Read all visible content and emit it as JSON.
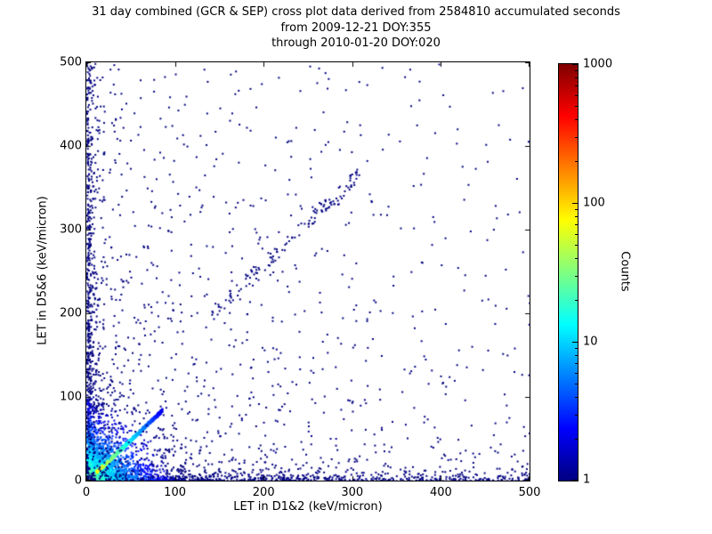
{
  "chart_data": {
    "type": "scatter",
    "title": "31 day combined (GCR & SEP) cross plot data derived from 2584810 accumulated seconds",
    "subtitle_from": "from 2009-12-21 DOY:355",
    "subtitle_through": "through 2010-01-20 DOY:020",
    "xlabel": "LET in D1&2 (keV/micron)",
    "ylabel": "LET in D5&6 (keV/micron)",
    "xlim": [
      0,
      500
    ],
    "ylim": [
      0,
      500
    ],
    "x_ticks": [
      0,
      100,
      200,
      300,
      400,
      500
    ],
    "y_ticks": [
      0,
      100,
      200,
      300,
      400,
      500
    ],
    "grid": false,
    "colorbar": {
      "label": "Counts",
      "scale": "log",
      "min": 1,
      "max": 1000,
      "ticks": [
        1,
        10,
        100,
        1000
      ],
      "colormap": "jet"
    },
    "seed": 20091221,
    "point_color": "#000080",
    "notes": "Dense high-count core at origin with a bright ridge along y=x up to ~85 keV/micron; columns of events hugging both axes; sparse single-count events across the plane; faint secondary diagonal band near y=x+60 for 140<x<310; isolated outliers near (197,475) and (375,478).",
    "clusters": [
      {
        "name": "core-hot",
        "n": 5200,
        "dist": "exp-core",
        "scale": 8,
        "fade_dist": 55,
        "v_max": 0.85,
        "size": 2
      },
      {
        "name": "core-halo",
        "n": 1600,
        "dist": "exp-core",
        "scale": 26,
        "fade_dist": 95,
        "v_max": 0.45,
        "size": 2
      },
      {
        "name": "identity-ridge",
        "n": 900,
        "dist": "diag",
        "x_range": [
          0,
          85
        ],
        "slope": 1.0,
        "intercept": 0,
        "noise": 2.2,
        "fade_dist": 140,
        "v_max": 0.7,
        "size": 2
      },
      {
        "name": "left-edge-column",
        "n": 650,
        "dist": "edge-left",
        "scale": 4,
        "pow": 2.2,
        "max": 500,
        "fade_dist": 110,
        "v_max": 0.5,
        "size": 2
      },
      {
        "name": "bottom-edge-row",
        "n": 850,
        "dist": "edge-bottom",
        "scale": 4,
        "pow": 2.0,
        "max": 500,
        "fade_dist": 110,
        "v_max": 0.5,
        "size": 2
      },
      {
        "name": "sparse-singles",
        "n": 1500,
        "dist": "sparse",
        "pow": 2.4,
        "max": 500,
        "color": "#000080",
        "size": 2
      },
      {
        "name": "upper-diagonal-band",
        "n": 130,
        "dist": "diag",
        "x_range": [
          140,
          310
        ],
        "slope": 1.0,
        "intercept": 60,
        "noise": 9,
        "color": "#000080",
        "size": 2
      }
    ],
    "extra_points": [
      [
        197,
        475
      ],
      [
        375,
        478
      ],
      [
        32,
        381
      ],
      [
        96,
        425
      ],
      [
        299,
        367
      ],
      [
        303,
        369
      ],
      [
        283,
        331
      ],
      [
        262,
        333
      ],
      [
        300,
        160
      ],
      [
        302,
        163
      ],
      [
        95,
        298
      ],
      [
        130,
        330
      ],
      [
        230,
        318
      ],
      [
        242,
        326
      ],
      [
        210,
        250
      ],
      [
        151,
        208
      ],
      [
        52,
        322
      ],
      [
        12,
        460
      ]
    ]
  }
}
